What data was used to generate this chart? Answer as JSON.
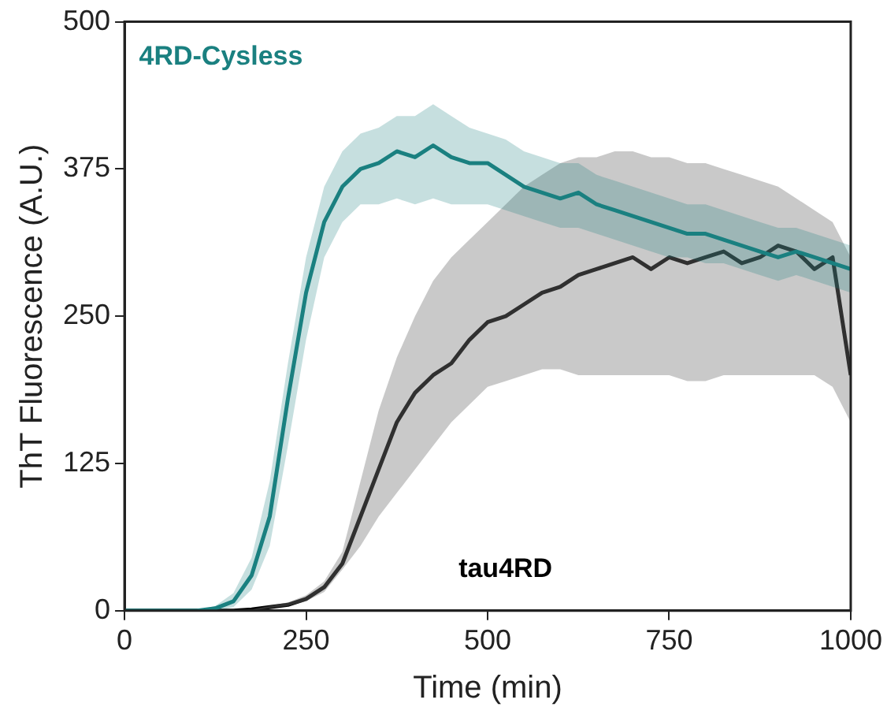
{
  "chart_data": {
    "type": "line",
    "xlabel": "Time (min)",
    "ylabel": "ThT Fluorescence (A.U.)",
    "x": [
      0,
      25,
      50,
      75,
      100,
      125,
      150,
      175,
      200,
      225,
      250,
      275,
      300,
      325,
      350,
      375,
      400,
      425,
      450,
      475,
      500,
      525,
      550,
      575,
      600,
      625,
      650,
      675,
      700,
      725,
      750,
      775,
      800,
      825,
      850,
      875,
      900,
      925,
      950,
      975,
      1000
    ],
    "xlim": [
      0,
      1000
    ],
    "xticks": [
      0,
      250,
      500,
      750,
      1000
    ],
    "ylim": [
      0,
      500
    ],
    "yticks": [
      0,
      125,
      250,
      375,
      500
    ],
    "grid": false,
    "legend": false,
    "marker": "none",
    "series": [
      {
        "name": "4RD-Cysless",
        "color": "#1a8080",
        "values": [
          0,
          0,
          0,
          0,
          0,
          2,
          8,
          30,
          80,
          180,
          270,
          330,
          360,
          375,
          380,
          390,
          385,
          395,
          385,
          380,
          380,
          370,
          360,
          355,
          350,
          355,
          345,
          340,
          335,
          330,
          325,
          320,
          320,
          315,
          310,
          305,
          300,
          305,
          300,
          295,
          290
        ],
        "upper": [
          0,
          0,
          0,
          0,
          0,
          4,
          15,
          45,
          110,
          210,
          300,
          360,
          390,
          405,
          410,
          420,
          420,
          430,
          420,
          410,
          405,
          400,
          390,
          385,
          380,
          380,
          370,
          365,
          360,
          355,
          350,
          345,
          345,
          340,
          335,
          330,
          325,
          325,
          320,
          315,
          310
        ],
        "lower": [
          0,
          0,
          0,
          0,
          0,
          0,
          3,
          18,
          55,
          140,
          230,
          300,
          330,
          345,
          345,
          350,
          345,
          350,
          345,
          345,
          345,
          340,
          335,
          330,
          325,
          325,
          320,
          315,
          310,
          305,
          300,
          300,
          295,
          295,
          290,
          285,
          280,
          285,
          280,
          275,
          270
        ]
      },
      {
        "name": "tau4RD",
        "color": "#000000",
        "values": [
          0,
          0,
          0,
          0,
          0,
          0,
          0,
          1,
          3,
          5,
          10,
          20,
          40,
          80,
          120,
          160,
          185,
          200,
          210,
          230,
          245,
          250,
          260,
          270,
          275,
          285,
          290,
          295,
          300,
          290,
          300,
          295,
          300,
          305,
          295,
          300,
          310,
          305,
          290,
          300,
          200
        ],
        "upper": [
          0,
          0,
          0,
          0,
          0,
          0,
          0,
          1,
          4,
          7,
          13,
          25,
          50,
          110,
          170,
          215,
          250,
          280,
          300,
          315,
          330,
          345,
          360,
          370,
          380,
          385,
          385,
          390,
          390,
          385,
          385,
          380,
          380,
          375,
          370,
          365,
          360,
          350,
          340,
          330,
          300
        ],
        "lower": [
          0,
          0,
          0,
          0,
          0,
          0,
          0,
          0,
          2,
          4,
          8,
          16,
          35,
          55,
          80,
          100,
          120,
          140,
          160,
          175,
          190,
          195,
          200,
          205,
          205,
          200,
          200,
          200,
          200,
          200,
          200,
          195,
          195,
          200,
          200,
          200,
          200,
          200,
          200,
          190,
          160
        ]
      }
    ]
  }
}
